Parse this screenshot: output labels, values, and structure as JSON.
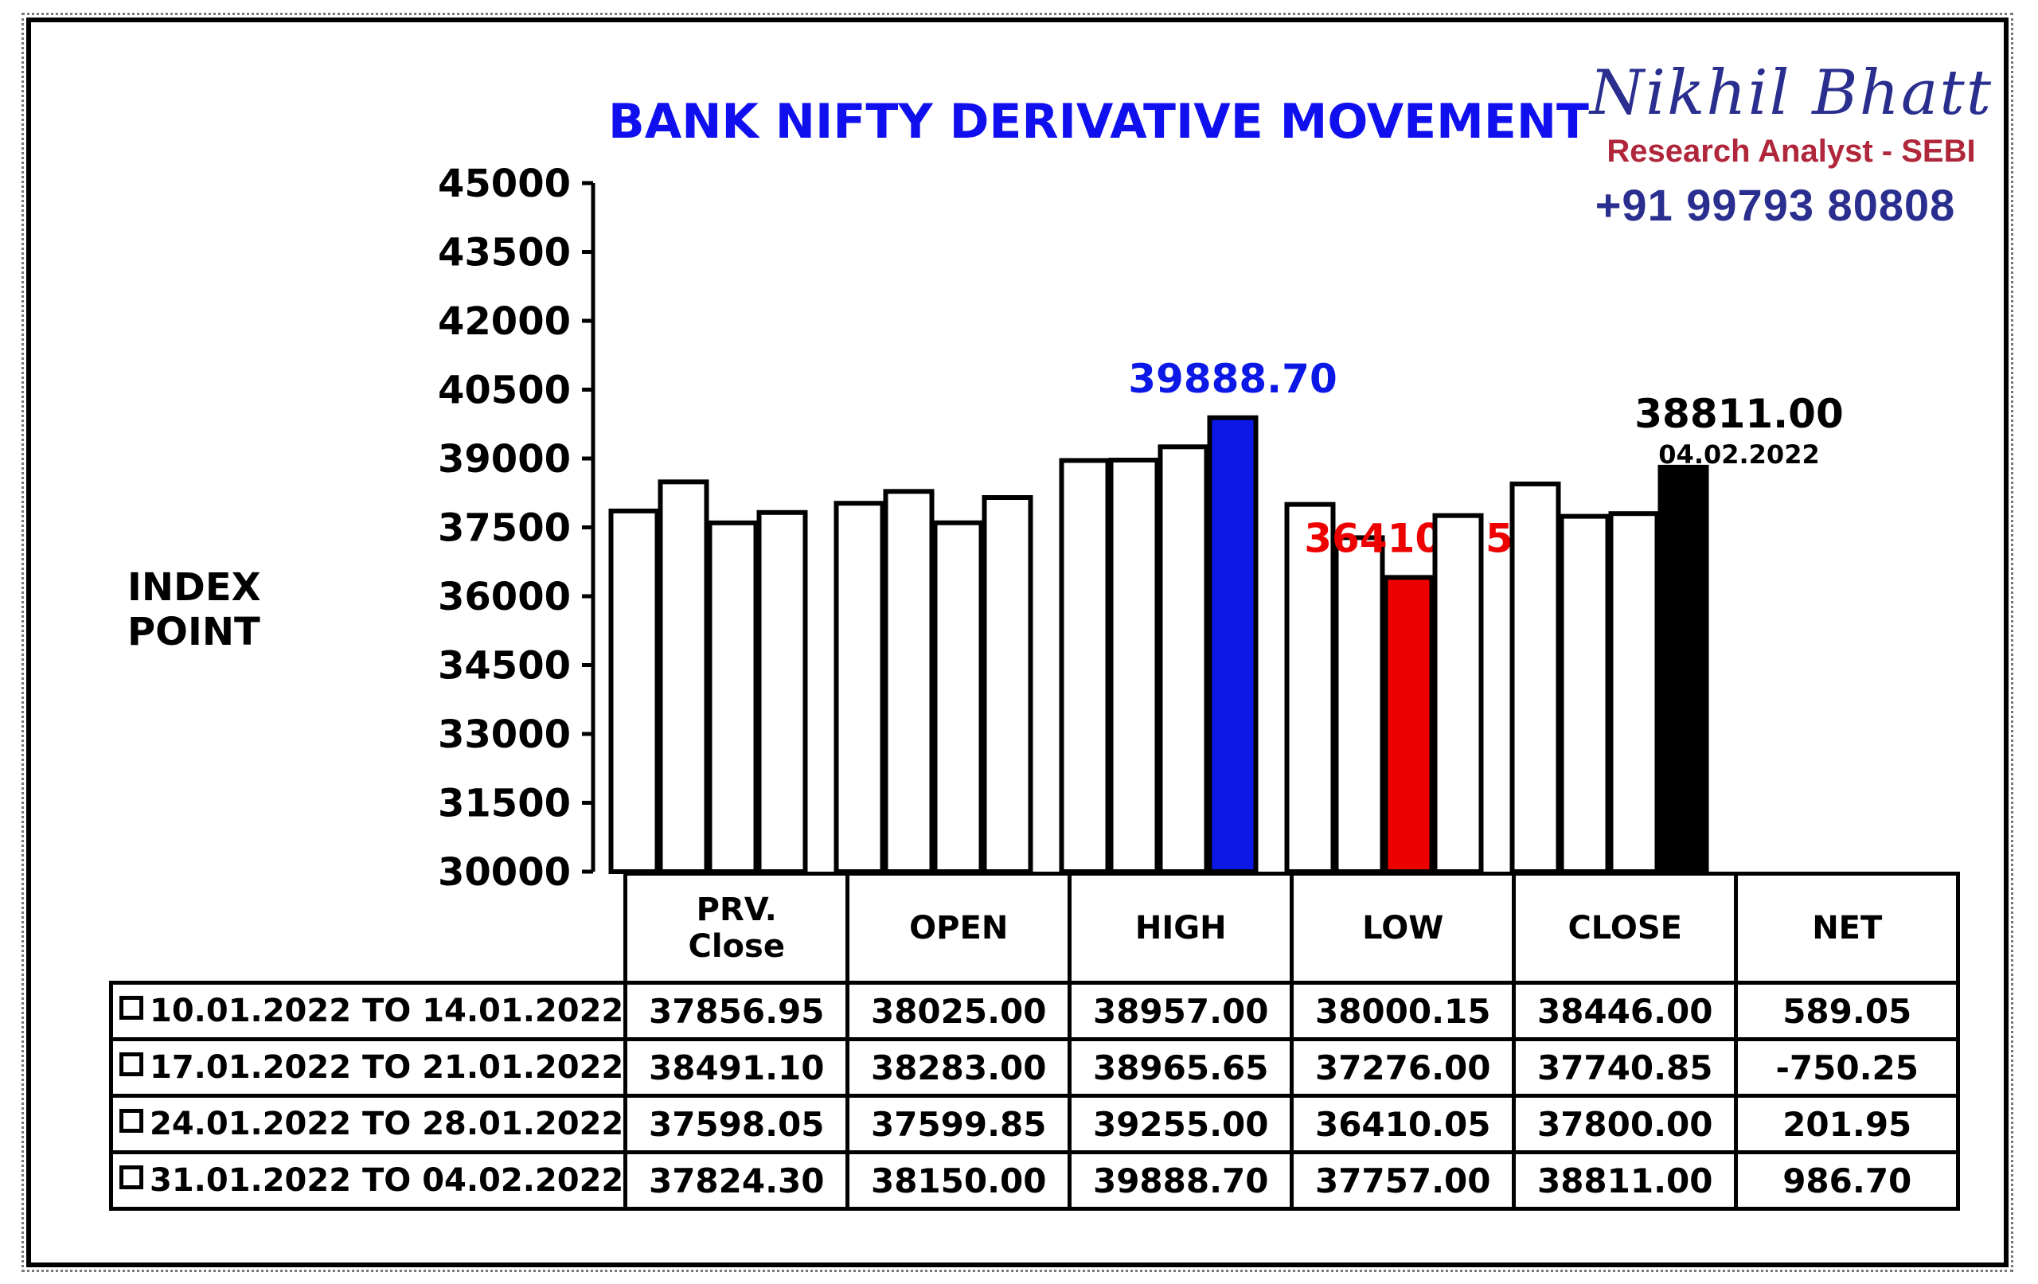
{
  "brand": {
    "name": "Nikhil Bhatt",
    "subtitle": "Research Analyst - SEBI",
    "phone": "+91 99793 80808"
  },
  "colors": {
    "title": "#1010ee",
    "high_bar": "#0b18e6",
    "low_bar": "#ee0000",
    "close_bar": "#000000",
    "bar_default": "#ffffff"
  },
  "chart_data": {
    "type": "bar",
    "title": "BANK NIFTY DERIVATIVE MOVEMENT",
    "ylabel": "INDEX POINT",
    "xlabel": "",
    "ylim": [
      30000,
      45000
    ],
    "yticks": [
      "45000",
      "43500",
      "42000",
      "40500",
      "39000",
      "37500",
      "36000",
      "34500",
      "33000",
      "31500",
      "30000"
    ],
    "categories": [
      "PRV. Close",
      "OPEN",
      "HIGH",
      "LOW",
      "CLOSE"
    ],
    "category_lines": [
      [
        "PRV.",
        "Close"
      ],
      [
        "OPEN"
      ],
      [
        "HIGH"
      ],
      [
        "LOW"
      ],
      [
        "CLOSE"
      ]
    ],
    "extra_column": "NET",
    "series": [
      {
        "name": "10.01.2022 TO 14.01.2022",
        "values": [
          37856.95,
          38025.0,
          38957.0,
          38000.15,
          38446.0
        ],
        "net": "589.05"
      },
      {
        "name": "17.01.2022 TO 21.01.2022",
        "values": [
          38491.1,
          38283.0,
          38965.65,
          37276.0,
          37740.85
        ],
        "net": "-750.25"
      },
      {
        "name": "24.01.2022 TO 28.01.2022",
        "values": [
          37598.05,
          37599.85,
          39255.0,
          36410.05,
          37800.0
        ],
        "net": "201.95"
      },
      {
        "name": "31.01.2022 TO 04.02.2022",
        "values": [
          37824.3,
          38150.0,
          39888.7,
          37757.0,
          38811.0
        ],
        "net": "986.70"
      }
    ],
    "table_values": [
      [
        "37856.95",
        "38025.00",
        "38957.00",
        "38000.15",
        "38446.00",
        "589.05"
      ],
      [
        "38491.10",
        "38283.00",
        "38965.65",
        "37276.00",
        "37740.85",
        "-750.25"
      ],
      [
        "37598.05",
        "37599.85",
        "39255.00",
        "36410.05",
        "37800.00",
        "201.95"
      ],
      [
        "37824.30",
        "38150.00",
        "39888.70",
        "37757.00",
        "38811.00",
        "986.70"
      ]
    ],
    "highlights": [
      {
        "category": "HIGH",
        "series": 3,
        "label": "39888.70",
        "color": "#0b18e6"
      },
      {
        "category": "LOW",
        "series": 2,
        "label": "36410.05",
        "color": "#ee0000"
      },
      {
        "category": "CLOSE",
        "series": 3,
        "label": "38811.00",
        "sublabel": "04.02.2022",
        "color": "#000000"
      }
    ],
    "grid": false,
    "legend": "table"
  }
}
